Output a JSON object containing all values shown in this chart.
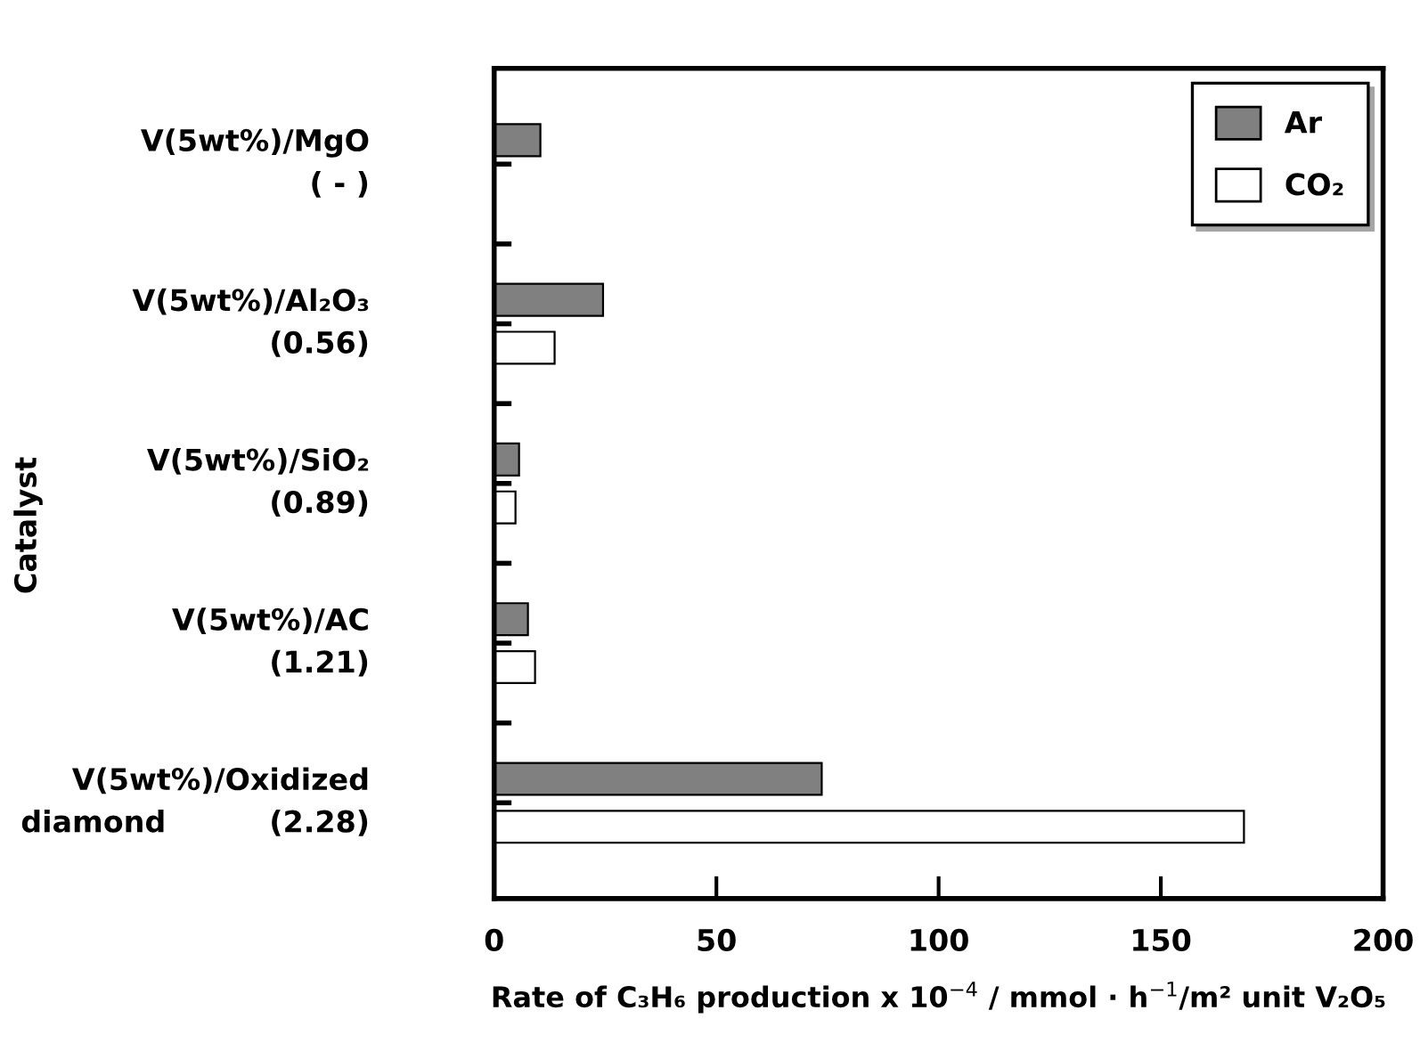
{
  "chart_data": {
    "type": "bar",
    "orientation": "horizontal",
    "categories": [
      "V(5wt%)/MgO\n( - )",
      "V(5wt%)/Al₂O₃\n(0.56)",
      "V(5wt%)/SiO₂\n(0.89)",
      "V(5wt%)/AC\n(1.21)",
      "V(5wt%)/Oxidized\ndiamond          (2.28)"
    ],
    "series": [
      {
        "name": "Ar",
        "color": "#808080",
        "values": [
          10.4,
          24.5,
          5.6,
          7.6,
          73.7
        ]
      },
      {
        "name": "CO₂",
        "color": "#ffffff",
        "values": [
          null,
          13.6,
          4.8,
          9.2,
          168.7
        ]
      }
    ],
    "xlabel": "Rate of C₃H₆ production x 10$^{−4}$ / mmol · h$^{−1}$/m² unit V₂O₅",
    "ylabel": "Catalyst",
    "xlim": [
      0,
      200
    ],
    "xticks": [
      0,
      50,
      100,
      150,
      200
    ],
    "legend": "top right",
    "grid": false
  }
}
